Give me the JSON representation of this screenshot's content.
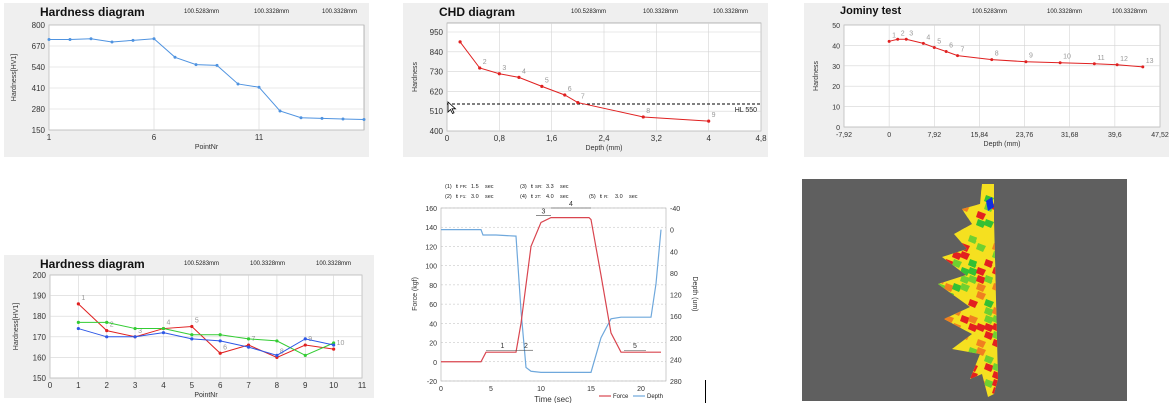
{
  "header": {
    "m1": "100.5283mm",
    "m2": "100.3328mm",
    "m3": "100.3328mm"
  },
  "chart_data": [
    {
      "id": "hd1",
      "type": "line",
      "title": "Hardness diagram",
      "xlabel": "PointNr",
      "ylabel": "Hardness[HV1]",
      "xlim": [
        1,
        16
      ],
      "ylim": [
        150,
        800
      ],
      "xticks": [
        "1",
        "6",
        "11"
      ],
      "xtick_vals": [
        1,
        6,
        11
      ],
      "yticks": [
        "150",
        "280",
        "410",
        "540",
        "670",
        "800"
      ],
      "ytick_vals": [
        150,
        280,
        410,
        540,
        670,
        800
      ],
      "color": "#4f93e0",
      "x": [
        1,
        2,
        3,
        4,
        5,
        6,
        7,
        8,
        9,
        10,
        11,
        12,
        13,
        14,
        15,
        16
      ],
      "y": [
        710,
        710,
        715,
        695,
        705,
        715,
        600,
        555,
        550,
        435,
        415,
        268,
        226,
        222,
        218,
        215
      ]
    },
    {
      "id": "chd",
      "type": "line",
      "title": "CHD diagram",
      "xlabel": "Depth (mm)",
      "ylabel": "Hardness",
      "xlim": [
        0,
        4.8
      ],
      "ylim": [
        400,
        1000
      ],
      "xticks": [
        "0",
        "0,8",
        "1,6",
        "2,4",
        "3,2",
        "4",
        "4,8"
      ],
      "xtick_vals": [
        0,
        0.8,
        1.6,
        2.4,
        3.2,
        4,
        4.8
      ],
      "yticks": [
        "400",
        "510",
        "620",
        "730",
        "840",
        "950"
      ],
      "ytick_vals": [
        400,
        510,
        620,
        730,
        840,
        950
      ],
      "color": "#e02020",
      "x": [
        0.2,
        0.5,
        0.8,
        1.1,
        1.45,
        1.8,
        2.0,
        3.0,
        4.0
      ],
      "y": [
        895,
        750,
        718,
        698,
        648,
        600,
        558,
        478,
        455
      ],
      "point_labels": [
        "",
        "2",
        "3",
        "4",
        "5",
        "6",
        "7",
        "8",
        "9"
      ],
      "hline": 550,
      "hline_label": "HL 550"
    },
    {
      "id": "jom",
      "type": "line",
      "title": "Jominy test",
      "xlabel": "Depth (mm)",
      "ylabel": "Hardness",
      "xlim": [
        -7.92,
        47.52
      ],
      "ylim": [
        0,
        50
      ],
      "xticks": [
        "-7,92",
        "0",
        "7,92",
        "15,84",
        "23,76",
        "31,68",
        "39,6",
        "47,52"
      ],
      "xtick_vals": [
        -7.92,
        0,
        7.92,
        15.84,
        23.76,
        31.68,
        39.6,
        47.52
      ],
      "yticks": [
        "0",
        "10",
        "20",
        "30",
        "40",
        "50"
      ],
      "ytick_vals": [
        0,
        10,
        20,
        30,
        40,
        50
      ],
      "color": "#e02020",
      "x": [
        0,
        1.5,
        3,
        6,
        7.92,
        10,
        12,
        18,
        24,
        30,
        36,
        40,
        44.5
      ],
      "y": [
        42,
        43,
        43,
        41,
        39,
        37,
        35,
        33,
        32,
        31.5,
        31,
        30.5,
        29.5
      ],
      "point_labels": [
        "1",
        "2",
        "3",
        "4",
        "5",
        "6",
        "7",
        "8",
        "9",
        "10",
        "11",
        "12",
        "13"
      ]
    },
    {
      "id": "hd2",
      "type": "line",
      "title": "Hardness diagram",
      "xlabel": "PointNr",
      "ylabel": "Hardness[HV1]",
      "xlim": [
        0,
        11
      ],
      "ylim": [
        150,
        200
      ],
      "xticks": [
        "0",
        "1",
        "2",
        "3",
        "4",
        "5",
        "6",
        "7",
        "8",
        "9",
        "10",
        "11"
      ],
      "xtick_vals": [
        0,
        1,
        2,
        3,
        4,
        5,
        6,
        7,
        8,
        9,
        10,
        11
      ],
      "yticks": [
        "150",
        "160",
        "170",
        "180",
        "190",
        "200"
      ],
      "ytick_vals": [
        150,
        160,
        170,
        180,
        190,
        200
      ],
      "x": [
        1,
        2,
        3,
        4,
        5,
        6,
        7,
        8,
        9,
        10
      ],
      "series": [
        {
          "color": "#e02020",
          "values": [
            186,
            173,
            170,
            174,
            175,
            162,
            166,
            160,
            166,
            164
          ]
        },
        {
          "color": "#33cc33",
          "values": [
            177,
            177,
            174,
            174,
            171,
            171,
            169,
            168,
            161,
            167
          ]
        },
        {
          "color": "#2d57e6",
          "values": [
            174,
            170,
            170,
            172,
            169,
            168,
            165,
            161,
            169,
            166
          ]
        }
      ],
      "point_labels": [
        "1",
        "2",
        "3",
        "4",
        "5",
        "6",
        "7",
        "8",
        "9",
        "10"
      ]
    },
    {
      "id": "force",
      "type": "line",
      "xlabel": "Time (sec)",
      "ylabel": "Force (kgf)",
      "y2label": "Depth (um)",
      "xlim": [
        0,
        22.5
      ],
      "ylim": [
        -20,
        160
      ],
      "y2lim": [
        -40,
        280
      ],
      "xticks": [
        "0",
        "5",
        "10",
        "15",
        "20"
      ],
      "xtick_vals": [
        0,
        5,
        10,
        15,
        20
      ],
      "yticks": [
        "-20",
        "0",
        "20",
        "40",
        "60",
        "80",
        "100",
        "120",
        "140",
        "160"
      ],
      "ytick_vals": [
        -20,
        0,
        20,
        40,
        60,
        80,
        100,
        120,
        140,
        160
      ],
      "y2ticks": [
        "-40",
        "0",
        "40",
        "80",
        "120",
        "160",
        "200",
        "240",
        "280"
      ],
      "y2tick_vals": [
        -40,
        0,
        40,
        80,
        120,
        160,
        200,
        240,
        280
      ],
      "legend": [
        "Force",
        "Depth"
      ],
      "params": [
        {
          "n": "(1)",
          "sym": "t",
          "sub": "FR:",
          "val": "1.5",
          "unit": "sec"
        },
        {
          "n": "(3)",
          "sym": "t",
          "sub": "SR:",
          "val": "3.3",
          "unit": "sec"
        },
        {
          "n": "(2)",
          "sym": "t",
          "sub": "F1:",
          "val": "3.0",
          "unit": "sec"
        },
        {
          "n": "(4)",
          "sym": "t",
          "sub": "2T:",
          "val": "4.0",
          "unit": "sec"
        },
        {
          "n": "(5)",
          "sym": "t",
          "sub": "R:",
          "val": "3.0",
          "unit": "sec"
        }
      ],
      "phase_labels": [
        "1",
        "2",
        "3",
        "4",
        "5"
      ],
      "force_series": {
        "color": "#d9454f",
        "x": [
          0,
          4,
          4.5,
          7.5,
          8,
          9,
          10,
          11,
          14.8,
          15,
          16,
          17,
          18,
          18.5,
          22
        ],
        "y": [
          0,
          0,
          10,
          10,
          40,
          120,
          145,
          150,
          150,
          148,
          90,
          30,
          10,
          10,
          10
        ]
      },
      "depth_series": {
        "color": "#6fa8dc",
        "x": [
          0,
          4,
          4.2,
          5.5,
          7.5,
          8,
          8.5,
          9,
          10,
          12,
          15,
          16,
          17,
          18,
          20,
          21,
          21.5,
          22
        ],
        "y": [
          0,
          0,
          10,
          10,
          12,
          150,
          255,
          262,
          264,
          264,
          264,
          200,
          165,
          162,
          162,
          162,
          100,
          0
        ]
      }
    }
  ],
  "heatmap_title": ""
}
